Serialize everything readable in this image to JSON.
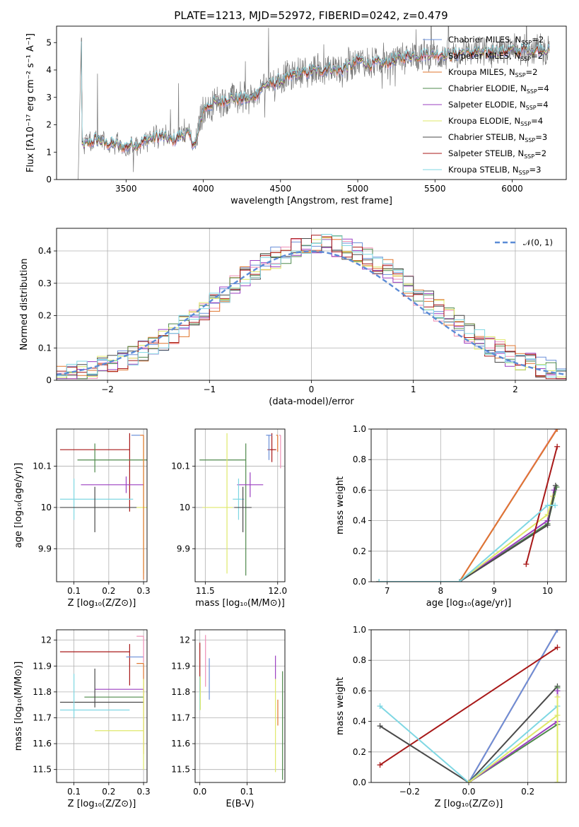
{
  "title": "PLATE=1213, MJD=52972, FIBERID=0242, z=0.479",
  "colors": {
    "Chabrier MILES": "#6a8fd8",
    "Salpeter MILES": "#ef8fb6",
    "Kroupa MILES": "#e0762e",
    "Chabrier ELODIE": "#4f8a4c",
    "Salpeter ELODIE": "#9b3fc1",
    "Kroupa ELODIE": "#dfe86a",
    "Chabrier STELIB": "#4a4a4a",
    "Salpeter STELIB": "#a81818",
    "Kroupa STELIB": "#7fd7e3",
    "data": "#777777",
    "gauss": "#5b8bd6"
  },
  "legend": [
    {
      "base": "Chabrier MILES, N",
      "sub": "SSP",
      "tail": "=2",
      "key": "Chabrier MILES"
    },
    {
      "base": "Salpeter MILES, N",
      "sub": "SSP",
      "tail": "=2",
      "key": "Salpeter MILES"
    },
    {
      "base": "Kroupa MILES, N",
      "sub": "SSP",
      "tail": "=2",
      "key": "Kroupa MILES"
    },
    {
      "base": "Chabrier ELODIE, N",
      "sub": "SSP",
      "tail": "=4",
      "key": "Chabrier ELODIE"
    },
    {
      "base": "Salpeter ELODIE, N",
      "sub": "SSP",
      "tail": "=4",
      "key": "Salpeter ELODIE"
    },
    {
      "base": "Kroupa ELODIE, N",
      "sub": "SSP",
      "tail": "=4",
      "key": "Kroupa ELODIE"
    },
    {
      "base": "Chabrier STELIB, N",
      "sub": "SSP",
      "tail": "=3",
      "key": "Chabrier STELIB"
    },
    {
      "base": "Salpeter STELIB, N",
      "sub": "SSP",
      "tail": "=2",
      "key": "Salpeter STELIB"
    },
    {
      "base": "Kroupa STELIB, N",
      "sub": "SSP",
      "tail": "=3",
      "key": "Kroupa STELIB"
    }
  ],
  "chart_data": [
    {
      "id": "spectrum",
      "type": "line",
      "xlabel": "wavelength [Angstrom, rest frame]",
      "ylabel": "Flux [fλ10⁻¹⁷ erg cm⁻² s⁻¹ A⁻¹]",
      "xlim": [
        3050,
        6350
      ],
      "ylim": [
        0,
        5.6
      ],
      "xticks": [
        3500,
        4000,
        4500,
        5000,
        5500,
        6000
      ],
      "yticks": [
        0,
        1,
        2,
        3,
        4,
        5
      ],
      "model_continuum": [
        [
          3215,
          1.25
        ],
        [
          3300,
          1.45
        ],
        [
          3400,
          1.3
        ],
        [
          3500,
          1.2
        ],
        [
          3600,
          1.35
        ],
        [
          3700,
          1.6
        ],
        [
          3800,
          1.45
        ],
        [
          3900,
          1.7
        ],
        [
          3950,
          1.2
        ],
        [
          4000,
          2.6
        ],
        [
          4100,
          2.85
        ],
        [
          4200,
          3.0
        ],
        [
          4300,
          2.9
        ],
        [
          4400,
          3.45
        ],
        [
          4500,
          3.6
        ],
        [
          4600,
          3.85
        ],
        [
          4700,
          3.95
        ],
        [
          4800,
          4.05
        ],
        [
          4900,
          4.0
        ],
        [
          5000,
          4.35
        ],
        [
          5100,
          4.2
        ],
        [
          5200,
          4.3
        ],
        [
          5300,
          4.5
        ],
        [
          5400,
          4.55
        ],
        [
          5500,
          4.6
        ],
        [
          5600,
          4.55
        ],
        [
          5700,
          4.65
        ],
        [
          5800,
          4.6
        ],
        [
          5900,
          4.7
        ],
        [
          6000,
          4.7
        ],
        [
          6100,
          4.75
        ],
        [
          6240,
          4.75
        ]
      ],
      "data_range": [
        3190,
        6240
      ]
    },
    {
      "id": "residuals",
      "type": "histogram",
      "xlabel": "(data-model)/error",
      "ylabel": "Normed distribution",
      "xlim": [
        -2.5,
        2.5
      ],
      "ylim": [
        0,
        0.47
      ],
      "xticks": [
        -2,
        -1,
        0,
        1,
        2
      ],
      "yticks": [
        0.0,
        0.1,
        0.2,
        0.3,
        0.4
      ],
      "bin_width": 0.1,
      "curve_label": "𝒩(0, 1)"
    },
    {
      "id": "age-vs-Z",
      "type": "errorbar",
      "xlabel": "Z [log₁₀(Z/Z⊙)]",
      "ylabel": "age  [log₁₀(age/yr)]",
      "xlim": [
        0.05,
        0.31
      ],
      "ylim": [
        9.82,
        10.19
      ],
      "xticks": [
        0.1,
        0.2,
        0.3
      ],
      "yticks": [
        9.9,
        10.0,
        10.1
      ],
      "points": [
        {
          "key": "Salpeter STELIB",
          "x": 0.26,
          "y": 10.14,
          "xerr": [
            0.2,
            0.0
          ],
          "yerr": [
            0.15,
            0.04
          ]
        },
        {
          "key": "Chabrier ELODIE",
          "x": 0.16,
          "y": 10.115,
          "xerr": [
            0.05,
            0.15
          ],
          "yerr": [
            0.03,
            0.04
          ]
        },
        {
          "key": "Salpeter ELODIE",
          "x": 0.25,
          "y": 10.055,
          "xerr": [
            0.13,
            0.05
          ],
          "yerr": [
            0.02,
            0.02
          ]
        },
        {
          "key": "Kroupa STELIB",
          "x": 0.1,
          "y": 10.02,
          "xerr": [
            0.04,
            0.17
          ],
          "yerr": [
            0.05,
            0.05
          ]
        },
        {
          "key": "Chabrier STELIB",
          "x": 0.16,
          "y": 10.0,
          "xerr": [
            0.1,
            0.12
          ],
          "yerr": [
            0.06,
            0.05
          ]
        },
        {
          "key": "Kroupa ELODIE",
          "x": 0.3,
          "y": 10.0,
          "xerr": [
            0.02,
            0.01
          ],
          "yerr": [
            0.16,
            0.17
          ]
        },
        {
          "key": "Chabrier MILES",
          "x": 0.29,
          "y": 10.175,
          "xerr": [
            0.025,
            0.0
          ],
          "yerr": [
            0.0,
            0.0
          ]
        },
        {
          "key": "Kroupa MILES",
          "x": 0.3,
          "y": 10.175,
          "xerr": [
            0.01,
            0.0
          ],
          "yerr": [
            0.35,
            0.0
          ]
        },
        {
          "key": "Salpeter MILES",
          "x": 0.3,
          "y": 10.17,
          "xerr": [
            0.0,
            0.0
          ],
          "yerr": [
            0.0,
            0.0
          ]
        }
      ]
    },
    {
      "id": "age-vs-mass",
      "type": "errorbar",
      "xlabel": "mass [log₁₀(M/M⊙)]",
      "ylabel": "",
      "xlim": [
        11.43,
        12.05
      ],
      "ylim": [
        9.82,
        10.19
      ],
      "xticks": [
        11.5,
        12.0
      ],
      "yticks": [
        9.9,
        10.0,
        10.1
      ],
      "points": [
        {
          "key": "Chabrier ELODIE",
          "x": 11.78,
          "y": 10.115,
          "xerr": [
            0.32,
            0.0
          ],
          "yerr": [
            0.28,
            0.04
          ]
        },
        {
          "key": "Salpeter ELODIE",
          "x": 11.81,
          "y": 10.055,
          "xerr": [
            0.09,
            0.09
          ],
          "yerr": [
            0.03,
            0.03
          ]
        },
        {
          "key": "Kroupa STELIB",
          "x": 11.73,
          "y": 10.02,
          "xerr": [
            0.04,
            0.04
          ],
          "yerr": [
            0.05,
            0.05
          ]
        },
        {
          "key": "Chabrier STELIB",
          "x": 11.76,
          "y": 10.0,
          "xerr": [
            0.06,
            0.06
          ],
          "yerr": [
            0.06,
            0.05
          ]
        },
        {
          "key": "Kroupa ELODIE",
          "x": 11.65,
          "y": 10.0,
          "xerr": [
            0.17,
            0.04
          ],
          "yerr": [
            0.16,
            0.18
          ]
        },
        {
          "key": "Salpeter STELIB",
          "x": 11.96,
          "y": 10.14,
          "xerr": [
            0.03,
            0.03
          ],
          "yerr": [
            0.03,
            0.04
          ]
        },
        {
          "key": "Chabrier MILES",
          "x": 11.94,
          "y": 10.175,
          "xerr": [
            0.02,
            0.02
          ],
          "yerr": [
            0.06,
            0.0
          ]
        },
        {
          "key": "Salpeter MILES",
          "x": 12.02,
          "y": 10.175,
          "xerr": [
            0.01,
            0.0
          ],
          "yerr": [
            0.08,
            0.0
          ]
        },
        {
          "key": "Kroupa MILES",
          "x": 12.0,
          "y": 10.175,
          "xerr": [
            0.01,
            0.0
          ],
          "yerr": [
            0.04,
            0.0
          ]
        }
      ]
    },
    {
      "id": "mass-weight-vs-age",
      "type": "line",
      "xlabel": "age  [log₁₀(age/yr)]",
      "ylabel": "mass weight",
      "xlim": [
        6.7,
        10.35
      ],
      "ylim": [
        0,
        1.0
      ],
      "xticks": [
        7,
        8,
        9,
        10
      ],
      "yticks": [
        0.0,
        0.2,
        0.4,
        0.6,
        0.8,
        1.0
      ],
      "series": [
        {
          "key": "Chabrier MILES",
          "x": [
            6.85,
            8.35,
            10.18
          ],
          "y": [
            0.0,
            0.0,
            1.0
          ]
        },
        {
          "key": "Salpeter MILES",
          "x": [
            6.85,
            8.35,
            10.17
          ],
          "y": [
            0.0,
            0.0,
            1.0
          ]
        },
        {
          "key": "Kroupa MILES",
          "x": [
            6.85,
            8.35,
            10.18
          ],
          "y": [
            0.0,
            0.0,
            1.0
          ]
        },
        {
          "key": "Chabrier ELODIE",
          "x": [
            6.85,
            8.35,
            10.0,
            10.17
          ],
          "y": [
            0.0,
            0.0,
            0.38,
            0.62
          ]
        },
        {
          "key": "Salpeter ELODIE",
          "x": [
            6.85,
            8.35,
            10.0,
            10.12
          ],
          "y": [
            0.0,
            0.0,
            0.4,
            0.6
          ]
        },
        {
          "key": "Kroupa ELODIE",
          "x": [
            6.85,
            8.35,
            10.0,
            10.1
          ],
          "y": [
            0.0,
            0.0,
            0.44,
            0.56
          ]
        },
        {
          "key": "Chabrier STELIB",
          "x": [
            6.85,
            8.35,
            10.0,
            10.15
          ],
          "y": [
            0.0,
            0.0,
            0.37,
            0.63
          ]
        },
        {
          "key": "Salpeter STELIB",
          "x": [
            9.6,
            10.18
          ],
          "y": [
            0.115,
            0.885
          ]
        },
        {
          "key": "Kroupa STELIB",
          "x": [
            6.85,
            8.35,
            10.0,
            10.14
          ],
          "y": [
            0.0,
            0.0,
            0.5,
            0.5
          ]
        }
      ]
    },
    {
      "id": "mass-vs-Z",
      "type": "errorbar",
      "xlabel": "Z [log₁₀(Z/Z⊙)]",
      "ylabel": "mass [log₁₀(M/M⊙)]",
      "xlim": [
        0.05,
        0.31
      ],
      "ylim": [
        11.45,
        12.04
      ],
      "xticks": [
        0.1,
        0.2,
        0.3
      ],
      "yticks": [
        11.5,
        11.6,
        11.7,
        11.8,
        11.9,
        12.0
      ],
      "points": [
        {
          "key": "Salpeter STELIB",
          "x": 0.26,
          "y": 11.955,
          "xerr": [
            0.2,
            0.0
          ],
          "yerr": [
            0.13,
            0.03
          ]
        },
        {
          "key": "Chabrier MILES",
          "x": 0.3,
          "y": 11.935,
          "xerr": [
            0.05,
            0.0
          ],
          "yerr": [
            0.0,
            0.0
          ]
        },
        {
          "key": "Salpeter MILES",
          "x": 0.3,
          "y": 12.015,
          "xerr": [
            0.02,
            0.0
          ],
          "yerr": [
            0.1,
            0.0
          ]
        },
        {
          "key": "Kroupa MILES",
          "x": 0.3,
          "y": 11.91,
          "xerr": [
            0.02,
            0.0
          ],
          "yerr": [
            0.35,
            0.0
          ]
        },
        {
          "key": "Salpeter ELODIE",
          "x": 0.3,
          "y": 11.81,
          "xerr": [
            0.14,
            0.0
          ],
          "yerr": [
            0.01,
            0.0
          ]
        },
        {
          "key": "Chabrier ELODIE",
          "x": 0.16,
          "y": 11.78,
          "xerr": [
            0.03,
            0.14
          ],
          "yerr": [
            0.0,
            0.0
          ]
        },
        {
          "key": "Chabrier STELIB",
          "x": 0.16,
          "y": 11.76,
          "xerr": [
            0.1,
            0.14
          ],
          "yerr": [
            0.02,
            0.13
          ]
        },
        {
          "key": "Kroupa STELIB",
          "x": 0.1,
          "y": 11.73,
          "xerr": [
            0.04,
            0.16
          ],
          "yerr": [
            0.03,
            0.14
          ]
        },
        {
          "key": "Kroupa ELODIE",
          "x": 0.3,
          "y": 11.65,
          "xerr": [
            0.14,
            0.0
          ],
          "yerr": [
            0.15,
            0.2
          ]
        }
      ]
    },
    {
      "id": "mass-vs-EBV",
      "type": "errorbar",
      "xlabel": "E(B-V)",
      "ylabel": "",
      "xlim": [
        -0.01,
        0.18
      ],
      "ylim": [
        11.45,
        12.04
      ],
      "xticks": [
        0.0,
        0.1
      ],
      "yticks": [
        11.5,
        11.6,
        11.7,
        11.8,
        11.9,
        12.0
      ],
      "points": [
        {
          "key": "Salpeter STELIB",
          "x": 0.0,
          "y": 11.92,
          "xerr": [
            0.0,
            0.0
          ],
          "yerr": [
            0.12,
            0.07
          ]
        },
        {
          "key": "Salpeter MILES",
          "x": 0.012,
          "y": 11.92,
          "xerr": [
            0.0,
            0.0
          ],
          "yerr": [
            0.1,
            0.1
          ]
        },
        {
          "key": "Chabrier MILES",
          "x": 0.02,
          "y": 11.85,
          "xerr": [
            0.0,
            0.0
          ],
          "yerr": [
            0.08,
            0.08
          ]
        },
        {
          "key": "Kroupa STELIB",
          "x": 0.0,
          "y": 11.76,
          "xerr": [
            0.0,
            0.0
          ],
          "yerr": [
            0.03,
            0.1
          ]
        },
        {
          "key": "Kroupa ELODIE",
          "x": 0.001,
          "y": 11.76,
          "xerr": [
            0.0,
            0.0
          ],
          "yerr": [
            0.03,
            0.1
          ]
        },
        {
          "key": "Salpeter ELODIE",
          "x": 0.16,
          "y": 11.89,
          "xerr": [
            0.0,
            0.0
          ],
          "yerr": [
            0.04,
            0.05
          ]
        },
        {
          "key": "Kroupa ELODIE",
          "x": 0.16,
          "y": 11.67,
          "xerr": [
            0.0,
            0.0
          ],
          "yerr": [
            0.18,
            0.18
          ]
        },
        {
          "key": "Chabrier ELODIE",
          "x": 0.175,
          "y": 11.67,
          "xerr": [
            0.0,
            0.0
          ],
          "yerr": [
            0.21,
            0.21
          ]
        },
        {
          "key": "Kroupa MILES",
          "x": 0.165,
          "y": 11.72,
          "xerr": [
            0.0,
            0.0
          ],
          "yerr": [
            0.05,
            0.05
          ]
        }
      ]
    },
    {
      "id": "mass-weight-vs-Z",
      "type": "line",
      "xlabel": "Z [log₁₀(Z/Z⊙)]",
      "ylabel": "mass weight",
      "xlim": [
        -0.33,
        0.33
      ],
      "ylim": [
        0,
        1.0
      ],
      "xticks": [
        -0.2,
        0.0,
        0.2
      ],
      "yticks": [
        0.0,
        0.2,
        0.4,
        0.6,
        0.8,
        1.0
      ],
      "series": [
        {
          "key": "Kroupa MILES",
          "x": [
            0.0,
            0.3
          ],
          "y": [
            0.0,
            1.0
          ]
        },
        {
          "key": "Salpeter MILES",
          "x": [
            0.0,
            0.3
          ],
          "y": [
            0.0,
            1.0
          ]
        },
        {
          "key": "Chabrier MILES",
          "x": [
            0.0,
            0.3
          ],
          "y": [
            0.0,
            1.0
          ]
        },
        {
          "key": "Salpeter STELIB",
          "x": [
            -0.3,
            0.3
          ],
          "y": [
            0.115,
            0.885
          ]
        },
        {
          "key": "Chabrier STELIB",
          "x": [
            -0.3,
            0.0,
            0.3
          ],
          "y": [
            0.37,
            0.0,
            0.63
          ]
        },
        {
          "key": "Kroupa STELIB",
          "x": [
            -0.3,
            0.0,
            0.3
          ],
          "y": [
            0.5,
            0.0,
            0.5
          ]
        },
        {
          "key": "Chabrier ELODIE",
          "x": [
            0.0,
            0.3,
            0.3,
            0.3
          ],
          "y": [
            0.0,
            0.38,
            0.62,
            0.0
          ]
        },
        {
          "key": "Salpeter ELODIE",
          "x": [
            0.0,
            0.3,
            0.3
          ],
          "y": [
            0.0,
            0.4,
            0.6
          ]
        },
        {
          "key": "Kroupa ELODIE",
          "x": [
            0.0,
            0.3,
            0.3,
            0.3
          ],
          "y": [
            0.0,
            0.44,
            0.56,
            0.0
          ]
        }
      ]
    }
  ]
}
